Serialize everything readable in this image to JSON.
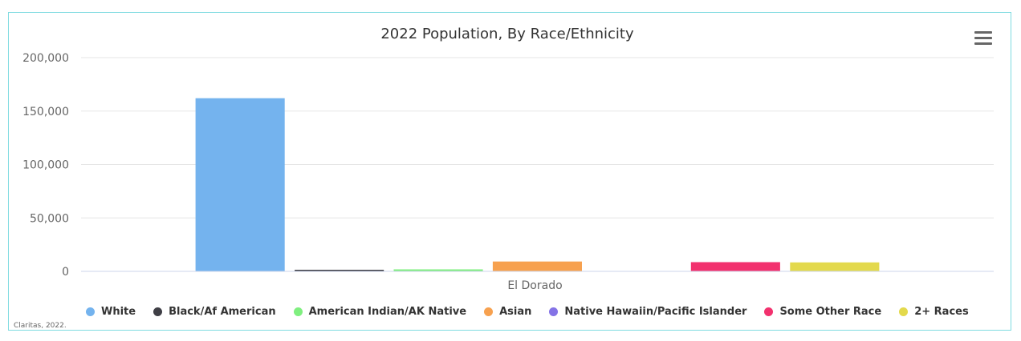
{
  "chart_data": {
    "type": "bar",
    "title": "2022 Population, By Race/Ethnicity",
    "categories": [
      "El Dorado"
    ],
    "ylim": [
      0,
      200000
    ],
    "yticks": [
      0,
      50000,
      100000,
      150000,
      200000
    ],
    "ytick_labels": [
      "0",
      "50,000",
      "100,000",
      "150,000",
      "200,000"
    ],
    "grid": true,
    "legend_position": "bottom",
    "series": [
      {
        "name": "White",
        "values": [
          162000
        ],
        "color": "#74b3ee"
      },
      {
        "name": "Black/Af American",
        "values": [
          1500
        ],
        "color": "#3f3f46"
      },
      {
        "name": "American Indian/AK Native",
        "values": [
          1900
        ],
        "color": "#7fef7f"
      },
      {
        "name": "Asian",
        "values": [
          9200
        ],
        "color": "#f7a14f"
      },
      {
        "name": "Native Hawaiin/Pacific Islander",
        "values": [
          300
        ],
        "color": "#8473e6"
      },
      {
        "name": "Some Other Race",
        "values": [
          8600
        ],
        "color": "#f2316e"
      },
      {
        "name": "2+ Races",
        "values": [
          8400
        ],
        "color": "#e3d94c"
      }
    ]
  },
  "credit": "Claritas, 2022.",
  "menu_icon": "hamburger-menu-icon"
}
